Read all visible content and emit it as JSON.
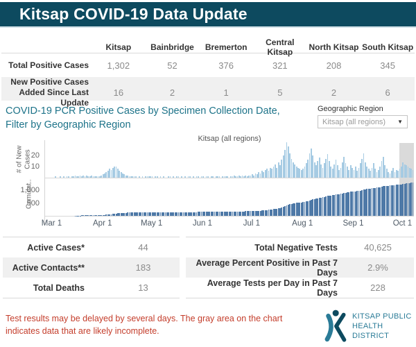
{
  "header": {
    "title": "Kitsap COVID-19 Data Update"
  },
  "summary_table": {
    "regions": [
      "Kitsap",
      "Bainbridge",
      "Bremerton",
      "Central Kitsap",
      "North Kitsap",
      "South Kitsap"
    ],
    "rows": [
      {
        "label": "Total Positive Cases",
        "values": [
          "1,302",
          "52",
          "376",
          "321",
          "208",
          "345"
        ]
      },
      {
        "label": "New Positive Cases\nAdded Since Last Update",
        "values": [
          "16",
          "2",
          "1",
          "5",
          "2",
          "6"
        ]
      }
    ]
  },
  "chart_section": {
    "title": "COVID-19 PCR Positive Cases by Specimen Collection Date,\nFilter by Geographic Region",
    "filter_label": "Geographic Region",
    "filter_value": "Kitsap (all regions)"
  },
  "chart_data": {
    "type": "bar",
    "title": "Kitsap (all regions)",
    "panels": [
      {
        "ylabel": "# of New\nCases",
        "y_ticks": [
          {
            "label": "20",
            "value": 20
          },
          {
            "label": "10",
            "value": 10
          }
        ],
        "ylim": [
          0,
          33
        ]
      },
      {
        "ylabel": "Cumulat..",
        "y_ticks": [
          {
            "label": "1,000",
            "value": 1000
          },
          {
            "label": "500",
            "value": 500
          }
        ],
        "ylim": [
          0,
          1400
        ]
      }
    ],
    "x_ticks": [
      {
        "label": "Mar 1",
        "day": 4
      },
      {
        "label": "Apr 1",
        "day": 35
      },
      {
        "label": "May 1",
        "day": 65
      },
      {
        "label": "Jun 1",
        "day": 96
      },
      {
        "label": "Jul 1",
        "day": 126
      },
      {
        "label": "Aug 1",
        "day": 157
      },
      {
        "label": "Sep 1",
        "day": 188
      },
      {
        "label": "Oct 1",
        "day": 218
      }
    ],
    "daily_new_cases": [
      0,
      0,
      0,
      0,
      0,
      0,
      1,
      0,
      0,
      1,
      0,
      1,
      0,
      1,
      1,
      0,
      1,
      1,
      2,
      1,
      1,
      2,
      1,
      2,
      1,
      2,
      1,
      1,
      2,
      1,
      1,
      1,
      1,
      1,
      2,
      3,
      4,
      5,
      6,
      8,
      7,
      9,
      10,
      10,
      8,
      6,
      5,
      4,
      3,
      2,
      2,
      1,
      1,
      1,
      1,
      1,
      0,
      1,
      0,
      1,
      0,
      1,
      1,
      1,
      1,
      1,
      0,
      1,
      1,
      0,
      1,
      0,
      1,
      0,
      0,
      1,
      1,
      0,
      1,
      0,
      1,
      1,
      0,
      1,
      0,
      1,
      0,
      1,
      1,
      0,
      1,
      0,
      1,
      1,
      0,
      1,
      1,
      0,
      1,
      1,
      0,
      1,
      1,
      0,
      1,
      1,
      1,
      0,
      1,
      1,
      1,
      1,
      0,
      1,
      1,
      2,
      1,
      1,
      2,
      1,
      2,
      1,
      2,
      1,
      2,
      2,
      3,
      2,
      4,
      3,
      5,
      4,
      6,
      5,
      7,
      8,
      6,
      9,
      8,
      10,
      12,
      9,
      14,
      11,
      16,
      20,
      25,
      32,
      28,
      22,
      17,
      14,
      12,
      10,
      9,
      8,
      7,
      8,
      10,
      13,
      16,
      22,
      26,
      20,
      14,
      11,
      15,
      18,
      12,
      9,
      13,
      17,
      21,
      15,
      10,
      8,
      12,
      16,
      11,
      7,
      9,
      14,
      19,
      13,
      10,
      7,
      11,
      9,
      7,
      10,
      6,
      9,
      13,
      17,
      22,
      14,
      10,
      8,
      6,
      9,
      13,
      8,
      5,
      7,
      10,
      15,
      19,
      11,
      8,
      5,
      4,
      6,
      9,
      5,
      7,
      6,
      8,
      10,
      14,
      12,
      11,
      10,
      9,
      8,
      7
    ],
    "cumulative_final": 1302,
    "incomplete_last_days": 9,
    "legend_position": "none",
    "grid": false,
    "colors": {
      "new_cases_bar": "#a6cbe3",
      "cumulative_bar": "#4e79a7",
      "incomplete_area": "#dadada"
    }
  },
  "stats": {
    "left_rows": [
      {
        "label": "Active Cases*",
        "value": "44"
      },
      {
        "label": "Active Contacts**",
        "value": "183"
      },
      {
        "label": "Total Deaths",
        "value": "13"
      }
    ],
    "right_rows": [
      {
        "label": "Total Negative Tests",
        "value": "40,625"
      },
      {
        "label": "Average Percent Positive in Past 7 Days",
        "value": "2.9%"
      },
      {
        "label": "Average Tests per Day in Past 7 Days",
        "value": "228"
      }
    ]
  },
  "footer": {
    "note": "Test results may be delayed by several days. The gray area on the chart\nindicates data that are likely incomplete.",
    "logo_line1": "KITSAP PUBLIC",
    "logo_line2": "HEALTH DISTRICT"
  },
  "colors": {
    "header_bg": "#0d4a5f",
    "accent_teal": "#1d7389",
    "note_red": "#c43d2b"
  }
}
